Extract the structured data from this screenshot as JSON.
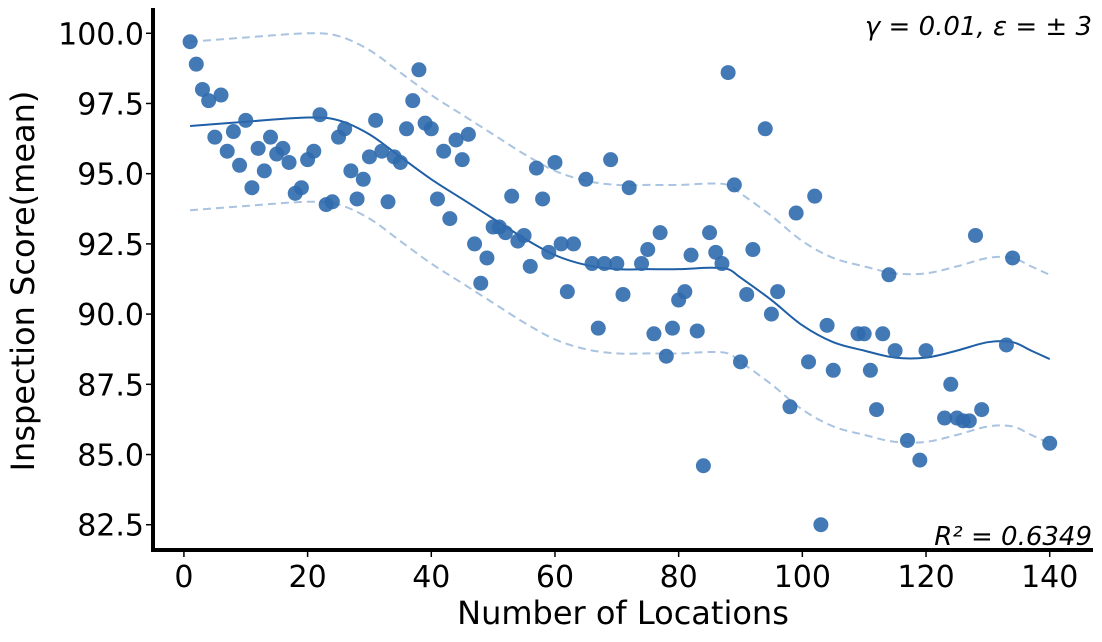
{
  "chart_data": {
    "type": "scatter",
    "title": "",
    "xlabel": "Number of Locations",
    "ylabel": "Inspection Score(mean)",
    "xlim": [
      -5,
      147
    ],
    "ylim": [
      81.6,
      100.9
    ],
    "x_ticks": [
      "0",
      "20",
      "40",
      "60",
      "80",
      "100",
      "120",
      "140"
    ],
    "y_ticks": [
      "82.5",
      "85.0",
      "87.5",
      "90.0",
      "92.5",
      "95.0",
      "97.5",
      "100.0"
    ],
    "grid": false,
    "annotations": {
      "params": "γ = 0.01, ε = ± 3",
      "r2": "R² = 0.6349"
    },
    "colors": {
      "points": "#2f6aad",
      "fit": "#1f5fa6",
      "band": "#a9c3e0"
    },
    "points": [
      [
        1,
        99.7
      ],
      [
        2,
        98.9
      ],
      [
        3,
        98.0
      ],
      [
        4,
        97.6
      ],
      [
        5,
        96.3
      ],
      [
        6,
        97.8
      ],
      [
        7,
        95.8
      ],
      [
        8,
        96.5
      ],
      [
        9,
        95.3
      ],
      [
        10,
        96.9
      ],
      [
        11,
        94.5
      ],
      [
        12,
        95.9
      ],
      [
        13,
        95.1
      ],
      [
        14,
        96.3
      ],
      [
        15,
        95.7
      ],
      [
        16,
        95.9
      ],
      [
        17,
        95.4
      ],
      [
        18,
        94.3
      ],
      [
        19,
        94.5
      ],
      [
        20,
        95.5
      ],
      [
        21,
        95.8
      ],
      [
        22,
        97.1
      ],
      [
        23,
        93.9
      ],
      [
        24,
        94.0
      ],
      [
        25,
        96.3
      ],
      [
        26,
        96.6
      ],
      [
        27,
        95.1
      ],
      [
        28,
        94.1
      ],
      [
        29,
        94.8
      ],
      [
        30,
        95.6
      ],
      [
        31,
        96.9
      ],
      [
        32,
        95.8
      ],
      [
        33,
        94.0
      ],
      [
        34,
        95.6
      ],
      [
        35,
        95.4
      ],
      [
        36,
        96.6
      ],
      [
        37,
        97.6
      ],
      [
        38,
        98.7
      ],
      [
        39,
        96.8
      ],
      [
        40,
        96.6
      ],
      [
        41,
        94.1
      ],
      [
        42,
        95.8
      ],
      [
        43,
        93.4
      ],
      [
        44,
        96.2
      ],
      [
        45,
        95.5
      ],
      [
        46,
        96.4
      ],
      [
        47,
        92.5
      ],
      [
        48,
        91.1
      ],
      [
        49,
        92.0
      ],
      [
        50,
        93.1
      ],
      [
        51,
        93.1
      ],
      [
        52,
        92.9
      ],
      [
        53,
        94.2
      ],
      [
        54,
        92.6
      ],
      [
        55,
        92.8
      ],
      [
        56,
        91.7
      ],
      [
        57,
        95.2
      ],
      [
        58,
        94.1
      ],
      [
        59,
        92.2
      ],
      [
        60,
        95.4
      ],
      [
        61,
        92.5
      ],
      [
        62,
        90.8
      ],
      [
        63,
        92.5
      ],
      [
        65,
        94.8
      ],
      [
        66,
        91.8
      ],
      [
        67,
        89.5
      ],
      [
        68,
        91.8
      ],
      [
        69,
        95.5
      ],
      [
        70,
        91.8
      ],
      [
        71,
        90.7
      ],
      [
        72,
        94.5
      ],
      [
        74,
        91.8
      ],
      [
        75,
        92.3
      ],
      [
        76,
        89.3
      ],
      [
        77,
        92.9
      ],
      [
        78,
        88.5
      ],
      [
        79,
        89.5
      ],
      [
        80,
        90.5
      ],
      [
        81,
        90.8
      ],
      [
        82,
        92.1
      ],
      [
        83,
        89.4
      ],
      [
        84,
        84.6
      ],
      [
        85,
        92.9
      ],
      [
        86,
        92.2
      ],
      [
        87,
        91.8
      ],
      [
        88,
        98.6
      ],
      [
        89,
        94.6
      ],
      [
        90,
        88.3
      ],
      [
        91,
        90.7
      ],
      [
        92,
        92.3
      ],
      [
        94,
        96.6
      ],
      [
        95,
        90.0
      ],
      [
        96,
        90.8
      ],
      [
        98,
        86.7
      ],
      [
        99,
        93.6
      ],
      [
        101,
        88.3
      ],
      [
        102,
        94.2
      ],
      [
        103,
        82.5
      ],
      [
        104,
        89.6
      ],
      [
        105,
        88.0
      ],
      [
        109,
        89.3
      ],
      [
        110,
        89.3
      ],
      [
        111,
        88.0
      ],
      [
        112,
        86.6
      ],
      [
        113,
        89.3
      ],
      [
        114,
        91.4
      ],
      [
        115,
        88.7
      ],
      [
        117,
        85.5
      ],
      [
        119,
        84.8
      ],
      [
        120,
        88.7
      ],
      [
        123,
        86.3
      ],
      [
        124,
        87.5
      ],
      [
        125,
        86.3
      ],
      [
        126,
        86.2
      ],
      [
        127,
        86.2
      ],
      [
        128,
        92.8
      ],
      [
        129,
        86.6
      ],
      [
        133,
        88.9
      ],
      [
        134,
        92.0
      ],
      [
        140,
        85.4
      ]
    ],
    "fit_line": [
      [
        1,
        96.7
      ],
      [
        10,
        96.85
      ],
      [
        20,
        97.0
      ],
      [
        25,
        96.9
      ],
      [
        30,
        96.4
      ],
      [
        35,
        95.6
      ],
      [
        40,
        94.8
      ],
      [
        45,
        94.1
      ],
      [
        50,
        93.4
      ],
      [
        55,
        92.7
      ],
      [
        60,
        92.1
      ],
      [
        65,
        91.75
      ],
      [
        70,
        91.6
      ],
      [
        75,
        91.6
      ],
      [
        80,
        91.6
      ],
      [
        85,
        91.65
      ],
      [
        88,
        91.6
      ],
      [
        90,
        91.3
      ],
      [
        95,
        90.5
      ],
      [
        100,
        89.6
      ],
      [
        105,
        89.0
      ],
      [
        110,
        88.7
      ],
      [
        115,
        88.45
      ],
      [
        120,
        88.45
      ],
      [
        125,
        88.7
      ],
      [
        130,
        89.0
      ],
      [
        134,
        89.0
      ],
      [
        137,
        88.7
      ],
      [
        140,
        88.4
      ]
    ],
    "band_offset": 3
  }
}
